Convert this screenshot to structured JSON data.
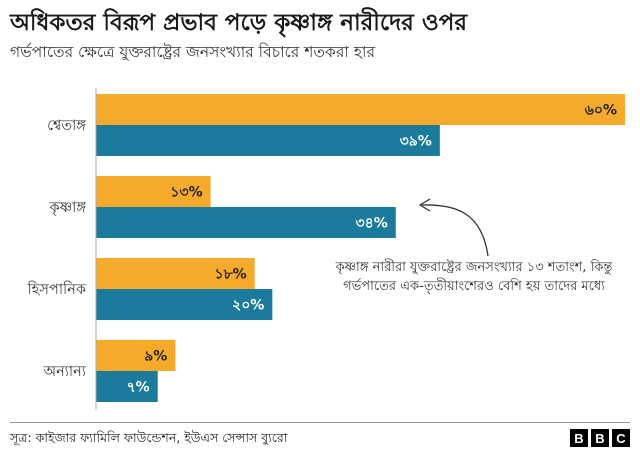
{
  "header": {
    "title": "অধিকতর বিরূপ প্রভাব পড়ে কৃষ্ণাঙ্গ নারীদের ওপর",
    "subtitle": "গর্ভপাতের ক্ষেত্রে যুক্তরাষ্ট্রের জনসংখ্যার বিচারে  শতকরা হার"
  },
  "chart_data": {
    "type": "bar",
    "orientation": "horizontal",
    "categories": [
      "শ্বেতাঙ্গ",
      "কৃষ্ণাঙ্গ",
      "হিসপানিক",
      "অন্যান্য"
    ],
    "series": [
      {
        "values": [
          60,
          13,
          18,
          9
        ],
        "labels": [
          "৬০%",
          "১৩%",
          "১৮%",
          "৯%"
        ],
        "color": "#F5AA2B"
      },
      {
        "values": [
          39,
          34,
          20,
          7
        ],
        "labels": [
          "৩৯%",
          "৩৪%",
          "২০%",
          "৭%"
        ],
        "color": "#1C7A9C"
      }
    ],
    "xlim": [
      0,
      60
    ],
    "grid": false,
    "annotation": "কৃষ্ণাঙ্গ নারীরা যুক্তরাষ্ট্রের জনসংখ্যার ১৩ শতাংশ, কিন্তু  গর্ভপাতের এক-তৃতীয়াংশেরও বেশি হয় তাদের মধ্যে"
  },
  "footer": {
    "source": "সূত্র: কাইজার ফ্যামিলি ফাউন্ডেশন, ইউএস সেন্সাস ব্যুরো",
    "logo_letters": [
      "B",
      "B",
      "C"
    ]
  },
  "colors": {
    "text_on_orange": "#222222",
    "text_on_blue": "#ffffff",
    "axis": "#aaaaaa"
  }
}
